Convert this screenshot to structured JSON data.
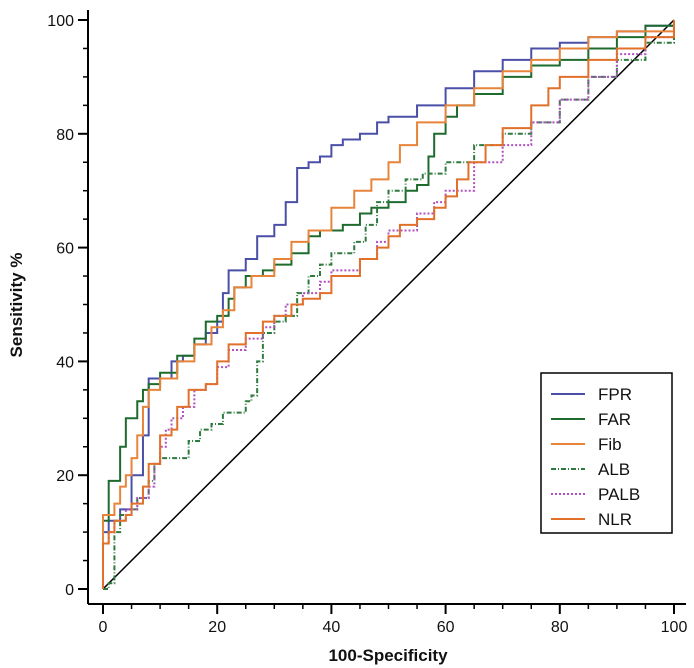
{
  "chart_data": {
    "type": "line",
    "title": "",
    "xlabel": "100-Specificity",
    "ylabel": "Sensitivity %",
    "xlim": [
      0,
      100
    ],
    "ylim": [
      0,
      100
    ],
    "xticks": [
      0,
      20,
      40,
      60,
      80,
      100
    ],
    "yticks": [
      0,
      20,
      40,
      60,
      80,
      100
    ],
    "grid": false,
    "legend_position": "bottom-right",
    "reference_line": {
      "x": [
        0,
        100
      ],
      "y": [
        0,
        100
      ],
      "color": "#000000"
    },
    "series": [
      {
        "name": "FPR",
        "color": "#4a4fa8",
        "dash": "solid",
        "points": [
          [
            0,
            0
          ],
          [
            0,
            10
          ],
          [
            1,
            12
          ],
          [
            2,
            12
          ],
          [
            3,
            14
          ],
          [
            4,
            14
          ],
          [
            5,
            20
          ],
          [
            6,
            20
          ],
          [
            7,
            27
          ],
          [
            8,
            30
          ],
          [
            8,
            37
          ],
          [
            10,
            37
          ],
          [
            12,
            40
          ],
          [
            14,
            41
          ],
          [
            16,
            43
          ],
          [
            18,
            45
          ],
          [
            20,
            47
          ],
          [
            21,
            52
          ],
          [
            22,
            56
          ],
          [
            25,
            58
          ],
          [
            27,
            62
          ],
          [
            30,
            64
          ],
          [
            32,
            68
          ],
          [
            34,
            74
          ],
          [
            36,
            75
          ],
          [
            38,
            76
          ],
          [
            40,
            78
          ],
          [
            42,
            79
          ],
          [
            45,
            80
          ],
          [
            48,
            82
          ],
          [
            50,
            83
          ],
          [
            55,
            85
          ],
          [
            60,
            88
          ],
          [
            65,
            91
          ],
          [
            70,
            93
          ],
          [
            75,
            95
          ],
          [
            80,
            96
          ],
          [
            85,
            97
          ],
          [
            90,
            98
          ],
          [
            95,
            99
          ],
          [
            100,
            100
          ]
        ]
      },
      {
        "name": "FAR",
        "color": "#1e6b2e",
        "dash": "solid",
        "points": [
          [
            0,
            0
          ],
          [
            0,
            12
          ],
          [
            1,
            16
          ],
          [
            1,
            19
          ],
          [
            2,
            19
          ],
          [
            3,
            25
          ],
          [
            4,
            30
          ],
          [
            5,
            30
          ],
          [
            6,
            33
          ],
          [
            7,
            35
          ],
          [
            8,
            36
          ],
          [
            10,
            38
          ],
          [
            13,
            41
          ],
          [
            16,
            44
          ],
          [
            18,
            47
          ],
          [
            20,
            48
          ],
          [
            22,
            51
          ],
          [
            23,
            53
          ],
          [
            25,
            55
          ],
          [
            28,
            56
          ],
          [
            30,
            57
          ],
          [
            33,
            59
          ],
          [
            36,
            62
          ],
          [
            38,
            63
          ],
          [
            40,
            63
          ],
          [
            42,
            64
          ],
          [
            45,
            66
          ],
          [
            47,
            67
          ],
          [
            50,
            68
          ],
          [
            53,
            70
          ],
          [
            55,
            71
          ],
          [
            57,
            76
          ],
          [
            58,
            80
          ],
          [
            60,
            83
          ],
          [
            62,
            85
          ],
          [
            65,
            87
          ],
          [
            70,
            90
          ],
          [
            75,
            92
          ],
          [
            80,
            93
          ],
          [
            85,
            95
          ],
          [
            90,
            97
          ],
          [
            95,
            99
          ],
          [
            100,
            100
          ]
        ]
      },
      {
        "name": "Fib",
        "color": "#e8843a",
        "dash": "solid",
        "points": [
          [
            0,
            0
          ],
          [
            0,
            13
          ],
          [
            2,
            15
          ],
          [
            3,
            18
          ],
          [
            4,
            20
          ],
          [
            5,
            23
          ],
          [
            6,
            27
          ],
          [
            7,
            32
          ],
          [
            8,
            35
          ],
          [
            10,
            37
          ],
          [
            13,
            40
          ],
          [
            16,
            43
          ],
          [
            19,
            46
          ],
          [
            21,
            49
          ],
          [
            23,
            53
          ],
          [
            26,
            55
          ],
          [
            30,
            58
          ],
          [
            33,
            61
          ],
          [
            36,
            63
          ],
          [
            40,
            67
          ],
          [
            44,
            70
          ],
          [
            47,
            72
          ],
          [
            50,
            75
          ],
          [
            52,
            78
          ],
          [
            55,
            82
          ],
          [
            60,
            85
          ],
          [
            65,
            88
          ],
          [
            70,
            91
          ],
          [
            75,
            93
          ],
          [
            80,
            95
          ],
          [
            85,
            97
          ],
          [
            90,
            98
          ],
          [
            100,
            100
          ]
        ]
      },
      {
        "name": "ALB",
        "color": "#2e7a3e",
        "dash": "dashdot",
        "points": [
          [
            0,
            0
          ],
          [
            1,
            1
          ],
          [
            2,
            1
          ],
          [
            2,
            10
          ],
          [
            3,
            13
          ],
          [
            5,
            14
          ],
          [
            6,
            16
          ],
          [
            8,
            19
          ],
          [
            9,
            22
          ],
          [
            10,
            23
          ],
          [
            14,
            23
          ],
          [
            15,
            26
          ],
          [
            17,
            28
          ],
          [
            19,
            29
          ],
          [
            21,
            31
          ],
          [
            25,
            33
          ],
          [
            26,
            34
          ],
          [
            27,
            40
          ],
          [
            28,
            45
          ],
          [
            30,
            47
          ],
          [
            32,
            48
          ],
          [
            34,
            52
          ],
          [
            36,
            55
          ],
          [
            38,
            57
          ],
          [
            40,
            59
          ],
          [
            44,
            61
          ],
          [
            46,
            64
          ],
          [
            48,
            68
          ],
          [
            50,
            70
          ],
          [
            53,
            72
          ],
          [
            56,
            73
          ],
          [
            60,
            75
          ],
          [
            65,
            78
          ],
          [
            70,
            80
          ],
          [
            75,
            82
          ],
          [
            80,
            86
          ],
          [
            85,
            90
          ],
          [
            90,
            93
          ],
          [
            95,
            96
          ],
          [
            100,
            100
          ]
        ]
      },
      {
        "name": "PALB",
        "color": "#b050c0",
        "dash": "dotted",
        "points": [
          [
            0,
            0
          ],
          [
            0,
            8
          ],
          [
            1,
            10
          ],
          [
            2,
            12
          ],
          [
            4,
            14
          ],
          [
            6,
            16
          ],
          [
            8,
            18
          ],
          [
            9,
            22
          ],
          [
            10,
            25
          ],
          [
            11,
            28
          ],
          [
            12,
            30
          ],
          [
            14,
            32
          ],
          [
            16,
            35
          ],
          [
            18,
            36
          ],
          [
            20,
            39
          ],
          [
            22,
            42
          ],
          [
            25,
            44
          ],
          [
            28,
            46
          ],
          [
            30,
            48
          ],
          [
            32,
            50
          ],
          [
            35,
            52
          ],
          [
            38,
            54
          ],
          [
            40,
            56
          ],
          [
            45,
            58
          ],
          [
            48,
            61
          ],
          [
            50,
            63
          ],
          [
            55,
            66
          ],
          [
            58,
            68
          ],
          [
            60,
            70
          ],
          [
            65,
            75
          ],
          [
            70,
            78
          ],
          [
            75,
            82
          ],
          [
            80,
            86
          ],
          [
            85,
            90
          ],
          [
            90,
            94
          ],
          [
            95,
            97
          ],
          [
            100,
            100
          ]
        ]
      },
      {
        "name": "NLR",
        "color": "#e0702a",
        "dash": "solid",
        "points": [
          [
            0,
            0
          ],
          [
            0,
            8
          ],
          [
            1,
            10
          ],
          [
            2,
            12
          ],
          [
            4,
            13
          ],
          [
            5,
            15
          ],
          [
            7,
            18
          ],
          [
            8,
            22
          ],
          [
            10,
            27
          ],
          [
            12,
            28
          ],
          [
            13,
            32
          ],
          [
            15,
            35
          ],
          [
            18,
            36
          ],
          [
            20,
            40
          ],
          [
            22,
            43
          ],
          [
            25,
            45
          ],
          [
            28,
            47
          ],
          [
            30,
            48
          ],
          [
            33,
            50
          ],
          [
            35,
            51
          ],
          [
            38,
            52
          ],
          [
            40,
            55
          ],
          [
            45,
            58
          ],
          [
            48,
            60
          ],
          [
            50,
            62
          ],
          [
            52,
            64
          ],
          [
            55,
            65
          ],
          [
            58,
            67
          ],
          [
            60,
            69
          ],
          [
            62,
            72
          ],
          [
            64,
            75
          ],
          [
            67,
            78
          ],
          [
            70,
            81
          ],
          [
            75,
            85
          ],
          [
            78,
            88
          ],
          [
            80,
            90
          ],
          [
            85,
            93
          ],
          [
            90,
            95
          ],
          [
            95,
            97
          ],
          [
            100,
            100
          ]
        ]
      }
    ]
  }
}
